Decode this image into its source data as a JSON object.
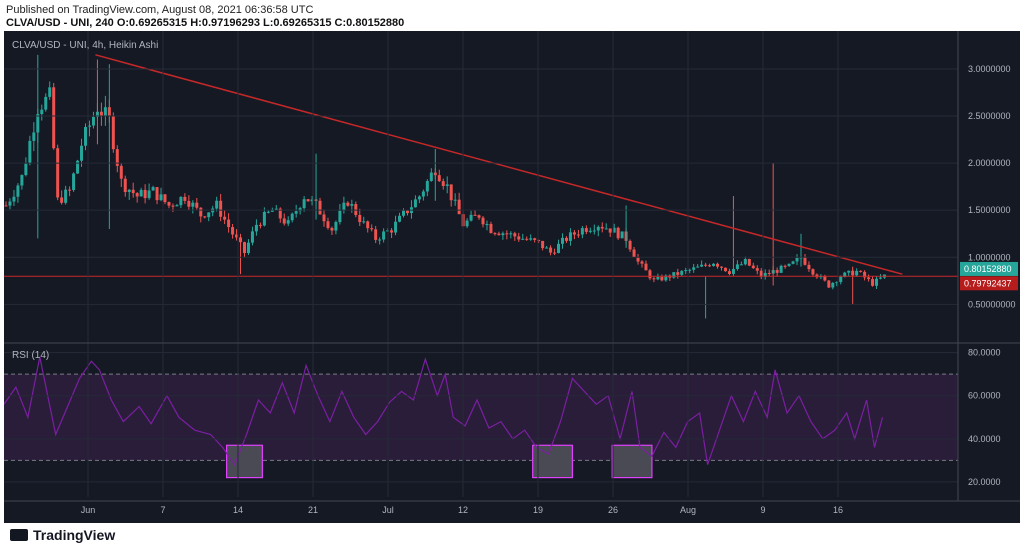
{
  "header": {
    "published": "Published on TradingView.com, August 08, 2021 06:36:58 UTC",
    "ohlc": "CLVA/USD - UNI, 240  O:0.69265315  H:0.97196293  L:0.69265315  C:0.80152880"
  },
  "footer": {
    "brand": "TradingView"
  },
  "colors": {
    "background": "#151924",
    "grid": "#252a37",
    "up": "#26a69a",
    "down": "#ef5350",
    "trendline": "#c62828",
    "rsi": "#7b1fa2",
    "rsi_band": "#2a1d3a",
    "last_price_badge": "#26a69a",
    "level_badge": "#b71c1c"
  },
  "chart_data": [
    {
      "type": "candlestick",
      "title": "CLVA/USD - UNI, 4h, Heikin Ashi",
      "ylim": [
        0.1,
        3.35
      ],
      "y_ticks": [
        0.5,
        1.0,
        1.5,
        2.0,
        2.5,
        3.0
      ],
      "y_tick_labels": [
        "0.50000000",
        "1.0000000",
        "1.5000000",
        "2.0000000",
        "2.5000000",
        "3.0000000"
      ],
      "x_ticks": [
        "Jun",
        "7",
        "14",
        "21",
        "Jul",
        "12",
        "19",
        "26",
        "Aug",
        "9",
        "16"
      ],
      "price_path": [
        {
          "x": 0,
          "y": 1.55
        },
        {
          "x": 4,
          "y": 1.85
        },
        {
          "x": 8,
          "y": 2.6
        },
        {
          "x": 11,
          "y": 2.7
        },
        {
          "x": 13,
          "y": 1.6
        },
        {
          "x": 16,
          "y": 1.7
        },
        {
          "x": 19,
          "y": 2.2
        },
        {
          "x": 23,
          "y": 2.6
        },
        {
          "x": 26,
          "y": 2.45
        },
        {
          "x": 29,
          "y": 1.8
        },
        {
          "x": 33,
          "y": 1.65
        },
        {
          "x": 37,
          "y": 1.7
        },
        {
          "x": 41,
          "y": 1.55
        },
        {
          "x": 45,
          "y": 1.65
        },
        {
          "x": 49,
          "y": 1.45
        },
        {
          "x": 53,
          "y": 1.55
        },
        {
          "x": 57,
          "y": 1.25
        },
        {
          "x": 60,
          "y": 1.05
        },
        {
          "x": 63,
          "y": 1.35
        },
        {
          "x": 67,
          "y": 1.5
        },
        {
          "x": 71,
          "y": 1.35
        },
        {
          "x": 75,
          "y": 1.65
        },
        {
          "x": 78,
          "y": 1.55
        },
        {
          "x": 82,
          "y": 1.3
        },
        {
          "x": 86,
          "y": 1.6
        },
        {
          "x": 90,
          "y": 1.35
        },
        {
          "x": 93,
          "y": 1.2
        },
        {
          "x": 97,
          "y": 1.3
        },
        {
          "x": 100,
          "y": 1.45
        },
        {
          "x": 104,
          "y": 1.65
        },
        {
          "x": 108,
          "y": 1.95
        },
        {
          "x": 111,
          "y": 1.75
        },
        {
          "x": 115,
          "y": 1.35
        },
        {
          "x": 119,
          "y": 1.45
        },
        {
          "x": 122,
          "y": 1.3
        },
        {
          "x": 126,
          "y": 1.25
        },
        {
          "x": 130,
          "y": 1.2
        },
        {
          "x": 134,
          "y": 1.15
        },
        {
          "x": 137,
          "y": 1.05
        },
        {
          "x": 141,
          "y": 1.2
        },
        {
          "x": 145,
          "y": 1.3
        },
        {
          "x": 149,
          "y": 1.35
        },
        {
          "x": 152,
          "y": 1.3
        },
        {
          "x": 156,
          "y": 1.2
        },
        {
          "x": 159,
          "y": 0.95
        },
        {
          "x": 163,
          "y": 0.75
        },
        {
          "x": 167,
          "y": 0.8
        },
        {
          "x": 171,
          "y": 0.85
        },
        {
          "x": 175,
          "y": 0.9
        },
        {
          "x": 178,
          "y": 0.95
        },
        {
          "x": 182,
          "y": 0.85
        },
        {
          "x": 186,
          "y": 0.95
        },
        {
          "x": 190,
          "y": 0.8
        },
        {
          "x": 193,
          "y": 0.85
        },
        {
          "x": 197,
          "y": 0.9
        },
        {
          "x": 200,
          "y": 1.0
        },
        {
          "x": 203,
          "y": 0.85
        },
        {
          "x": 207,
          "y": 0.7
        },
        {
          "x": 210,
          "y": 0.8
        },
        {
          "x": 214,
          "y": 0.85
        },
        {
          "x": 218,
          "y": 0.72
        },
        {
          "x": 221,
          "y": 0.8
        }
      ],
      "spikes": [
        {
          "x": 8,
          "hi": 3.15,
          "lo": 1.2
        },
        {
          "x": 23,
          "hi": 3.1,
          "lo": 2.2
        },
        {
          "x": 26,
          "hi": 3.05,
          "lo": 1.3
        },
        {
          "x": 59,
          "hi": 1.2,
          "lo": 0.82
        },
        {
          "x": 78,
          "hi": 2.1,
          "lo": 1.4
        },
        {
          "x": 108,
          "hi": 2.15,
          "lo": 1.6
        },
        {
          "x": 156,
          "hi": 1.55,
          "lo": 1.1
        },
        {
          "x": 176,
          "hi": 0.8,
          "lo": 0.35
        },
        {
          "x": 183,
          "hi": 1.65,
          "lo": 0.85
        },
        {
          "x": 193,
          "hi": 2.0,
          "lo": 0.7
        },
        {
          "x": 200,
          "hi": 1.25,
          "lo": 0.9
        },
        {
          "x": 213,
          "hi": 0.9,
          "lo": 0.5
        }
      ],
      "trendline": {
        "from": {
          "x": 23,
          "y": 3.15
        },
        "to": {
          "x": 226,
          "y": 0.82
        }
      },
      "horizontal_level": 0.79792437,
      "price_labels": [
        {
          "value": 0.8015288,
          "text": "0.80152880",
          "kind": "last"
        },
        {
          "value": 0.79792437,
          "text": "0.79792437",
          "kind": "level"
        }
      ]
    },
    {
      "type": "line",
      "title": "RSI (14)",
      "ylim": [
        13,
        84
      ],
      "y_ticks": [
        20,
        40,
        60,
        80
      ],
      "y_tick_labels": [
        "20.0000",
        "40.0000",
        "60.0000",
        "80.0000"
      ],
      "band": [
        30,
        70
      ],
      "values": [
        {
          "x": 0,
          "y": 56
        },
        {
          "x": 3,
          "y": 64
        },
        {
          "x": 6,
          "y": 50
        },
        {
          "x": 9,
          "y": 78
        },
        {
          "x": 11,
          "y": 60
        },
        {
          "x": 13,
          "y": 42
        },
        {
          "x": 16,
          "y": 55
        },
        {
          "x": 19,
          "y": 68
        },
        {
          "x": 22,
          "y": 76
        },
        {
          "x": 24,
          "y": 72
        },
        {
          "x": 27,
          "y": 58
        },
        {
          "x": 30,
          "y": 48
        },
        {
          "x": 34,
          "y": 55
        },
        {
          "x": 37,
          "y": 47
        },
        {
          "x": 41,
          "y": 60
        },
        {
          "x": 44,
          "y": 50
        },
        {
          "x": 48,
          "y": 44
        },
        {
          "x": 52,
          "y": 42
        },
        {
          "x": 55,
          "y": 36
        },
        {
          "x": 58,
          "y": 28
        },
        {
          "x": 61,
          "y": 42
        },
        {
          "x": 64,
          "y": 58
        },
        {
          "x": 67,
          "y": 52
        },
        {
          "x": 70,
          "y": 66
        },
        {
          "x": 73,
          "y": 52
        },
        {
          "x": 76,
          "y": 74
        },
        {
          "x": 79,
          "y": 60
        },
        {
          "x": 82,
          "y": 48
        },
        {
          "x": 85,
          "y": 62
        },
        {
          "x": 88,
          "y": 50
        },
        {
          "x": 91,
          "y": 42
        },
        {
          "x": 94,
          "y": 48
        },
        {
          "x": 97,
          "y": 57
        },
        {
          "x": 100,
          "y": 62
        },
        {
          "x": 103,
          "y": 58
        },
        {
          "x": 106,
          "y": 77
        },
        {
          "x": 109,
          "y": 60
        },
        {
          "x": 111,
          "y": 70
        },
        {
          "x": 113,
          "y": 50
        },
        {
          "x": 116,
          "y": 46
        },
        {
          "x": 119,
          "y": 58
        },
        {
          "x": 122,
          "y": 45
        },
        {
          "x": 125,
          "y": 48
        },
        {
          "x": 128,
          "y": 40
        },
        {
          "x": 131,
          "y": 44
        },
        {
          "x": 134,
          "y": 36
        },
        {
          "x": 137,
          "y": 33
        },
        {
          "x": 140,
          "y": 48
        },
        {
          "x": 143,
          "y": 68
        },
        {
          "x": 146,
          "y": 62
        },
        {
          "x": 149,
          "y": 56
        },
        {
          "x": 152,
          "y": 60
        },
        {
          "x": 155,
          "y": 40
        },
        {
          "x": 158,
          "y": 62
        },
        {
          "x": 160,
          "y": 36
        },
        {
          "x": 163,
          "y": 32
        },
        {
          "x": 166,
          "y": 43
        },
        {
          "x": 169,
          "y": 36
        },
        {
          "x": 172,
          "y": 48
        },
        {
          "x": 175,
          "y": 52
        },
        {
          "x": 177,
          "y": 28
        },
        {
          "x": 180,
          "y": 44
        },
        {
          "x": 183,
          "y": 60
        },
        {
          "x": 186,
          "y": 48
        },
        {
          "x": 189,
          "y": 62
        },
        {
          "x": 192,
          "y": 50
        },
        {
          "x": 194,
          "y": 72
        },
        {
          "x": 197,
          "y": 52
        },
        {
          "x": 200,
          "y": 60
        },
        {
          "x": 203,
          "y": 48
        },
        {
          "x": 206,
          "y": 40
        },
        {
          "x": 209,
          "y": 44
        },
        {
          "x": 212,
          "y": 52
        },
        {
          "x": 214,
          "y": 40
        },
        {
          "x": 217,
          "y": 58
        },
        {
          "x": 219,
          "y": 36
        },
        {
          "x": 221,
          "y": 50
        }
      ],
      "markers": [
        {
          "x_from": 56,
          "x_to": 65,
          "y_from": 22,
          "y_to": 37
        },
        {
          "x_from": 133,
          "x_to": 143,
          "y_from": 22,
          "y_to": 37
        },
        {
          "x_from": 153,
          "x_to": 163,
          "y_from": 22,
          "y_to": 37
        }
      ]
    }
  ]
}
